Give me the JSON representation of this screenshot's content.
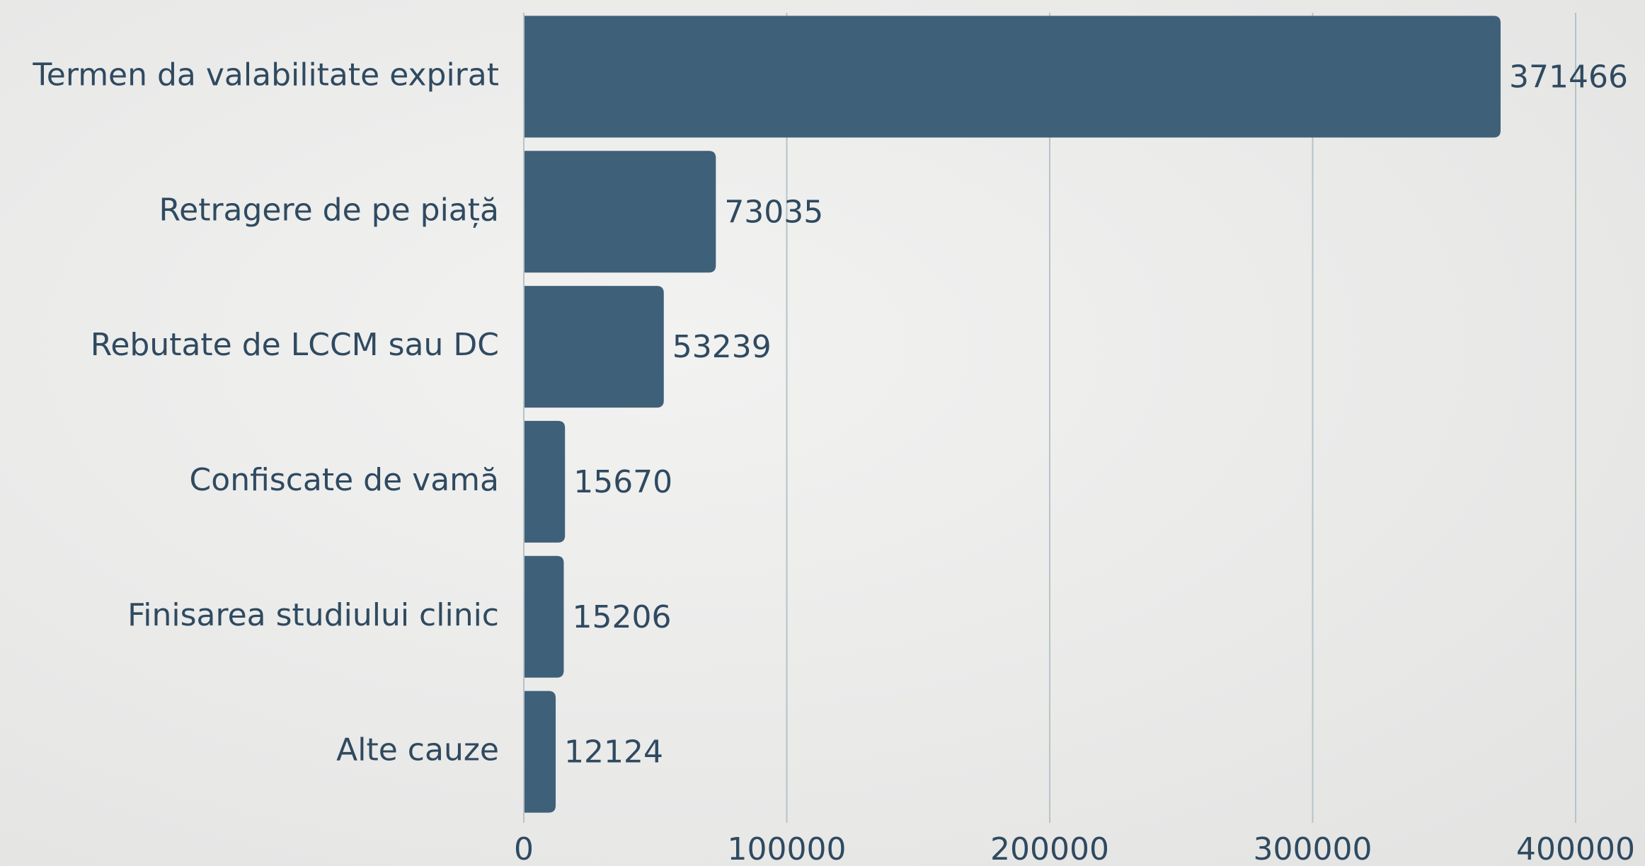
{
  "chart_data": {
    "type": "bar",
    "orientation": "horizontal",
    "categories": [
      "Termen da valabilitate expirat",
      "Retragere de pe piață",
      "Rebutate de LCCM sau DC",
      "Confiscate de vamă",
      "Finisarea studiului clinic",
      "Alte cauze"
    ],
    "values": [
      371466,
      73035,
      53239,
      15670,
      15206,
      12124
    ],
    "color": "#3f6079",
    "xlim": [
      0,
      400000
    ],
    "xticks": [
      0,
      100000,
      200000,
      300000,
      400000
    ],
    "grid": true
  }
}
